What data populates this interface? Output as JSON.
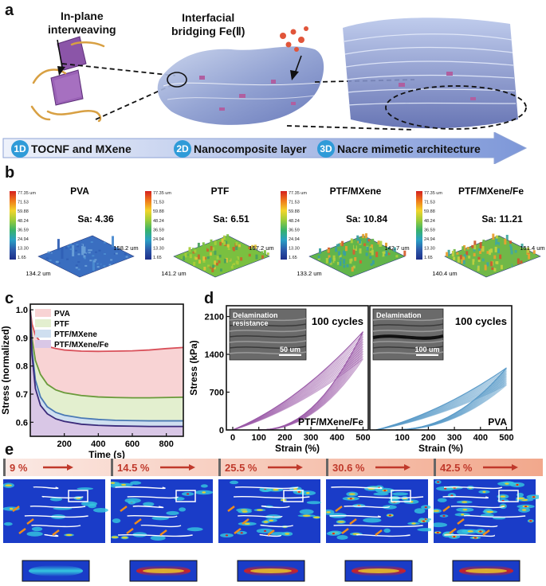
{
  "panel_a": {
    "letter": "a",
    "label_inplane": [
      "In-plane",
      "interweaving"
    ],
    "label_bridging": [
      "Interfacial",
      "bridging Fe(Ⅱ)"
    ],
    "steps": [
      {
        "badge": "1D",
        "text": "TOCNF and MXene"
      },
      {
        "badge": "2D",
        "text": "Nanocomposite layer"
      },
      {
        "badge": "3D",
        "text": "Nacre mimetic architecture"
      }
    ]
  },
  "panel_b": {
    "letter": "b",
    "colorbar_ticks": [
      "77.35 um",
      "71.53",
      "59.88",
      "48.24",
      "36.59",
      "24.94",
      "13.30",
      "1.65"
    ],
    "maps": [
      {
        "title": "PVA",
        "sa": "Sa: 4.36",
        "dim_left": "134.2 um",
        "dim_right": "158.2 um"
      },
      {
        "title": "PTF",
        "sa": "Sa: 6.51",
        "dim_left": "141.2 um",
        "dim_right": "157.2 um"
      },
      {
        "title": "PTF/MXene",
        "sa": "Sa: 10.84",
        "dim_left": "133.2 um",
        "dim_right": "142.7 um"
      },
      {
        "title": "PTF/MXene/Fe",
        "sa": "Sa: 11.21",
        "dim_left": "140.4 um",
        "dim_right": "151.4 um"
      }
    ]
  },
  "panel_c": {
    "letter": "c",
    "chart_data": {
      "type": "line",
      "xlabel": "Time (s)",
      "ylabel": "Stress (normalized)",
      "xlim": [
        0,
        900
      ],
      "ylim": [
        0.55,
        1.02
      ],
      "xticks": [
        200,
        400,
        600,
        800
      ],
      "yticks": [
        0.6,
        0.7,
        0.8,
        0.9,
        1.0
      ],
      "legend": "top-left",
      "series": [
        {
          "name": "PVA",
          "color": "#d9505a",
          "fill": "#f8d3d4",
          "x": [
            0,
            10,
            30,
            60,
            100,
            150,
            200,
            300,
            400,
            500,
            600,
            700,
            800,
            900
          ],
          "y": [
            1.0,
            0.95,
            0.91,
            0.885,
            0.87,
            0.862,
            0.857,
            0.853,
            0.852,
            0.853,
            0.854,
            0.857,
            0.862,
            0.866
          ]
        },
        {
          "name": "PTF",
          "color": "#6a9a3a",
          "fill": "#e3efcf",
          "x": [
            0,
            10,
            30,
            60,
            100,
            150,
            200,
            300,
            400,
            500,
            600,
            700,
            800,
            900
          ],
          "y": [
            1.0,
            0.9,
            0.82,
            0.77,
            0.735,
            0.715,
            0.705,
            0.695,
            0.69,
            0.688,
            0.687,
            0.687,
            0.688,
            0.689
          ]
        },
        {
          "name": "PTF/MXene",
          "color": "#4a79b5",
          "fill": "#cfdff0",
          "x": [
            0,
            10,
            30,
            60,
            100,
            150,
            200,
            300,
            400,
            500,
            600,
            700,
            800,
            900
          ],
          "y": [
            1.0,
            0.86,
            0.75,
            0.69,
            0.655,
            0.635,
            0.625,
            0.615,
            0.61,
            0.607,
            0.606,
            0.605,
            0.605,
            0.605
          ]
        },
        {
          "name": "PTF/MXene/Fe",
          "color": "#3a2a7a",
          "fill": "#d9c7e6",
          "x": [
            0,
            10,
            30,
            60,
            100,
            150,
            200,
            300,
            400,
            500,
            600,
            700,
            800,
            900
          ],
          "y": [
            1.0,
            0.84,
            0.72,
            0.66,
            0.63,
            0.612,
            0.603,
            0.593,
            0.589,
            0.587,
            0.586,
            0.585,
            0.585,
            0.585
          ]
        }
      ]
    }
  },
  "panel_d": {
    "letter": "d",
    "chart_data": {
      "type": "line",
      "xlabel": "Strain (%)",
      "ylabel": "Stress (kPa)",
      "ylim": [
        0,
        2300
      ],
      "yticks": [
        0,
        700,
        1400,
        2100
      ],
      "xticks": [
        0,
        100,
        200,
        300,
        400,
        500
      ],
      "subplots": [
        {
          "label": "PTF/MXene/Fe",
          "cycles": "100 cycles",
          "inset_text": [
            "Delamination",
            "resistance"
          ],
          "scale": "50 um",
          "color": "#9a5aa8",
          "load_peak": 1820,
          "unload_start_strain": 100
        },
        {
          "label": "PVA",
          "cycles": "100 cycles",
          "inset_text": [
            "Delamination"
          ],
          "scale": "100 um",
          "color": "#5a9ac8",
          "load_peak": 1150,
          "unload_start_strain": 60
        }
      ]
    }
  },
  "panel_e": {
    "letter": "e",
    "strains": [
      "9 %",
      "14.5 %",
      "25.5 %",
      "30.6 %",
      "42.5 %"
    ]
  }
}
